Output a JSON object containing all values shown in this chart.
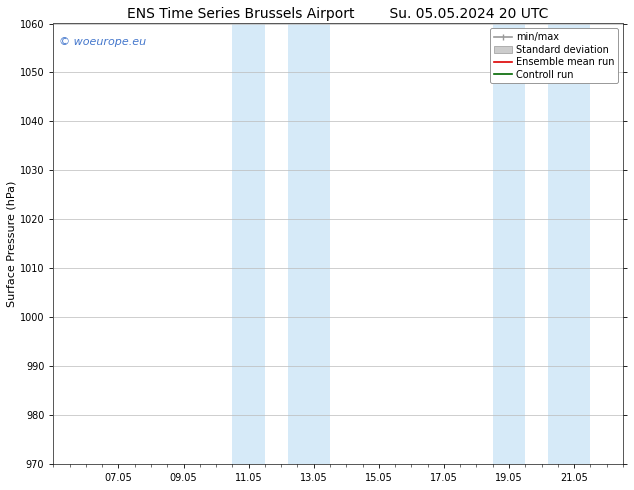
{
  "title_left": "ENS Time Series Brussels Airport",
  "title_right": "Su. 05.05.2024 20 UTC",
  "ylabel": "Surface Pressure (hPa)",
  "ylim": [
    970,
    1060
  ],
  "yticks": [
    970,
    980,
    990,
    1000,
    1010,
    1020,
    1030,
    1040,
    1050,
    1060
  ],
  "xtick_labels": [
    "07.05",
    "09.05",
    "11.05",
    "13.05",
    "15.05",
    "17.05",
    "19.05",
    "21.05"
  ],
  "xtick_positions": [
    2,
    4,
    6,
    8,
    10,
    12,
    14,
    16
  ],
  "xlim": [
    0.0,
    17.5
  ],
  "shade_bands": [
    {
      "xmin": 5.5,
      "xmax": 6.5
    },
    {
      "xmin": 7.2,
      "xmax": 8.5
    },
    {
      "xmin": 13.5,
      "xmax": 14.5
    },
    {
      "xmin": 15.2,
      "xmax": 16.5
    }
  ],
  "shade_color": "#d6eaf8",
  "background_color": "#ffffff",
  "watermark_text": "© woeurope.eu",
  "watermark_color": "#4477cc",
  "legend_items": [
    {
      "label": "min/max",
      "color": "#999999",
      "lw": 1.2
    },
    {
      "label": "Standard deviation",
      "color": "#cccccc",
      "lw": 5
    },
    {
      "label": "Ensemble mean run",
      "color": "#dd0000",
      "lw": 1.2
    },
    {
      "label": "Controll run",
      "color": "#006600",
      "lw": 1.2
    }
  ],
  "grid_color": "#bbbbbb",
  "title_fontsize": 10,
  "ylabel_fontsize": 8,
  "tick_fontsize": 7,
  "watermark_fontsize": 8,
  "legend_fontsize": 7
}
